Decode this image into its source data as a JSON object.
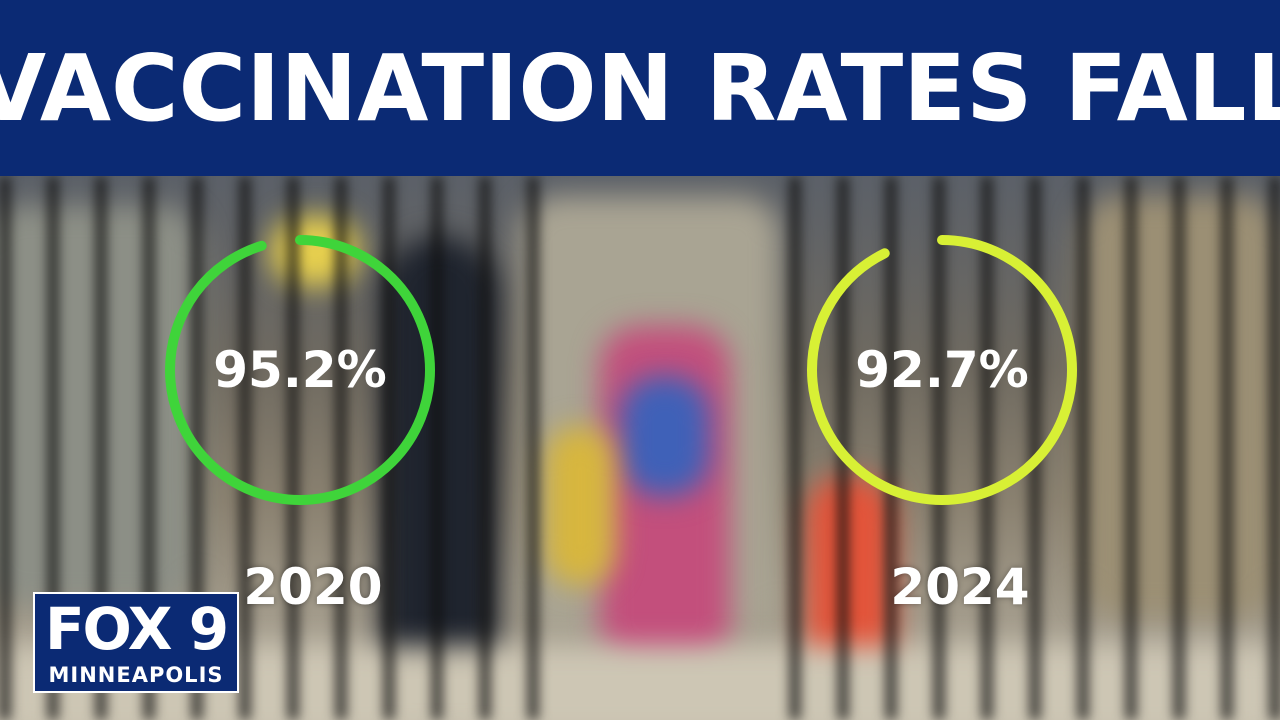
{
  "banner": {
    "title": "VACCINATION RATES FALL"
  },
  "gauges": [
    {
      "value_label": "95.2%",
      "percent": 95.2,
      "year": "2020",
      "color": "#3fd43a"
    },
    {
      "value_label": "92.7%",
      "percent": 92.7,
      "year": "2024",
      "color": "#d8f035"
    }
  ],
  "logo": {
    "brand": "FOX 9",
    "city": "MINNEAPOLIS"
  },
  "colors": {
    "banner_bg": "#0b2a74",
    "text": "#ffffff"
  }
}
